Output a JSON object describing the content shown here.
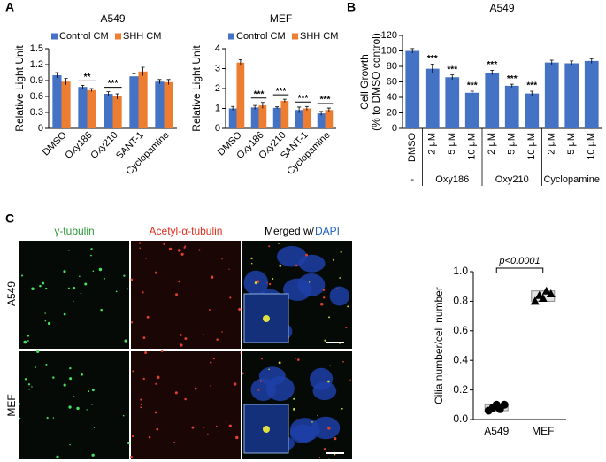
{
  "panel_labels": [
    "A",
    "B",
    "C"
  ],
  "microscopy": {
    "column_titles": [
      "γ-tubulin",
      "Acetyl-α-tubulin"
    ],
    "merged_title": [
      "Merged w/",
      "DAPI"
    ],
    "rows": [
      "A549",
      "MEF"
    ]
  },
  "chart_data": [
    {
      "type": "bar",
      "title": "A549",
      "y_label": "Relative Light Unit",
      "categories": [
        "DMSO",
        "Oxy186",
        "Oxy210",
        "SANT-1",
        "Cyclopamine"
      ],
      "series": [
        {
          "name": "Control CM",
          "color": "#4472c4",
          "values": [
            1.0,
            0.78,
            0.65,
            0.98,
            0.88
          ],
          "errors": [
            0.05,
            0.03,
            0.04,
            0.05,
            0.04
          ]
        },
        {
          "name": "SHH CM",
          "color": "#ed7d31",
          "values": [
            0.88,
            0.72,
            0.6,
            1.07,
            0.87
          ],
          "errors": [
            0.06,
            0.03,
            0.05,
            0.08,
            0.05
          ]
        }
      ],
      "significance": [
        null,
        "**",
        "***",
        null,
        null
      ],
      "ylim": [
        0,
        1.5
      ],
      "yticks": [
        0,
        0.3,
        0.6,
        0.9,
        1.2,
        1.5
      ]
    },
    {
      "type": "bar",
      "title": "MEF",
      "y_label": "Relative Light Unit",
      "categories": [
        "DMSO",
        "Oxy186",
        "Oxy210",
        "SANT-1",
        "Cyclopamine"
      ],
      "series": [
        {
          "name": "Control CM",
          "color": "#4472c4",
          "values": [
            1.0,
            1.05,
            1.03,
            0.92,
            0.75
          ],
          "errors": [
            0.1,
            0.1,
            0.05,
            0.15,
            0.1
          ]
        },
        {
          "name": "SHH CM",
          "color": "#ed7d31",
          "values": [
            3.3,
            1.15,
            1.38,
            1.0,
            0.92
          ],
          "errors": [
            0.15,
            0.15,
            0.08,
            0.1,
            0.1
          ]
        }
      ],
      "significance": [
        null,
        "***",
        "***",
        "***",
        "***"
      ],
      "ylim": [
        0,
        4
      ],
      "yticks": [
        0,
        1,
        2,
        3,
        4
      ]
    },
    {
      "type": "bar",
      "title": "A549",
      "y_label": [
        "Cell Growth",
        "(% to DMSO control)"
      ],
      "categories": [
        "DMSO",
        "2 μM",
        "5 μM",
        "10 μM",
        "2 μM",
        "5 μM",
        "10 μM",
        "2 μM",
        "5 μM",
        "10 μM"
      ],
      "category_groups": [
        "-",
        "Oxy186",
        "Oxy186",
        "Oxy186",
        "Oxy210",
        "Oxy210",
        "Oxy210",
        "Cyclopamine",
        "Cyclopamine",
        "Cyclopamine"
      ],
      "values": [
        100,
        77,
        66,
        46,
        72,
        55,
        45,
        85,
        84,
        87
      ],
      "errors": [
        3,
        6,
        3,
        2,
        3,
        2,
        3,
        3,
        3,
        3
      ],
      "color": "#4472c4",
      "significance": [
        null,
        "***",
        "***",
        "***",
        "***",
        "***",
        "***",
        null,
        null,
        null
      ],
      "ylim": [
        0,
        120
      ],
      "yticks": [
        0,
        20,
        40,
        60,
        80,
        100,
        120
      ]
    },
    {
      "type": "scatter",
      "y_label": "Cilia number/cell number",
      "categories": [
        "A549",
        "MEF"
      ],
      "values": [
        [
          0.06,
          0.1,
          0.08,
          0.07,
          0.1
        ],
        [
          0.8,
          0.85,
          0.84,
          0.87,
          0.82
        ]
      ],
      "markers": [
        "circle",
        "triangle"
      ],
      "color": "#000000",
      "annotation": "p<0.0001",
      "ylim": [
        0,
        1
      ],
      "yticks": [
        {
          "value": 0,
          "label": "0.0"
        },
        0.2,
        0.4,
        0.6,
        0.8,
        {
          "value": 1,
          "label": "1.0"
        }
      ]
    }
  ]
}
